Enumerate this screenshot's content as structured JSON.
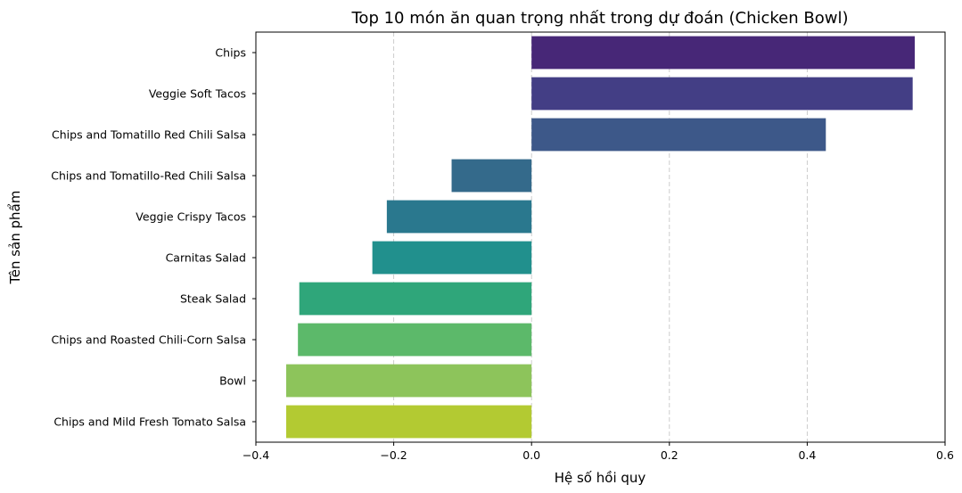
{
  "chart_data": {
    "type": "bar",
    "orientation": "horizontal",
    "title": "Top 10 món ăn quan trọng nhất trong dự đoán (Chicken Bowl)",
    "xlabel": "Hệ số hồi quy",
    "ylabel": "Tên sản phẩm",
    "xlim": [
      -0.4,
      0.6
    ],
    "xticks": [
      "−0.4",
      "−0.2",
      "0.0",
      "0.2",
      "0.4",
      "0.6"
    ],
    "xtick_values": [
      -0.4,
      -0.2,
      0.0,
      0.2,
      0.4,
      0.6
    ],
    "grid": "vertical dashed",
    "categories": [
      "Chips",
      "Veggie Soft Tacos",
      "Chips and Tomatillo Red Chili Salsa",
      "Chips and Tomatillo-Red Chili Salsa",
      "Veggie Crispy Tacos",
      "Carnitas Salad",
      "Steak Salad",
      "Chips and Roasted Chili-Corn Salsa",
      "Bowl",
      "Chips and Mild Fresh Tomato Salsa"
    ],
    "values": [
      0.556,
      0.553,
      0.427,
      -0.116,
      -0.21,
      -0.231,
      -0.337,
      -0.339,
      -0.356,
      -0.356
    ],
    "colors": [
      "#472777",
      "#433e85",
      "#3d5889",
      "#346a8b",
      "#2a788e",
      "#21908d",
      "#2fa67a",
      "#5cb96a",
      "#8dc45b",
      "#b3ca32"
    ]
  }
}
